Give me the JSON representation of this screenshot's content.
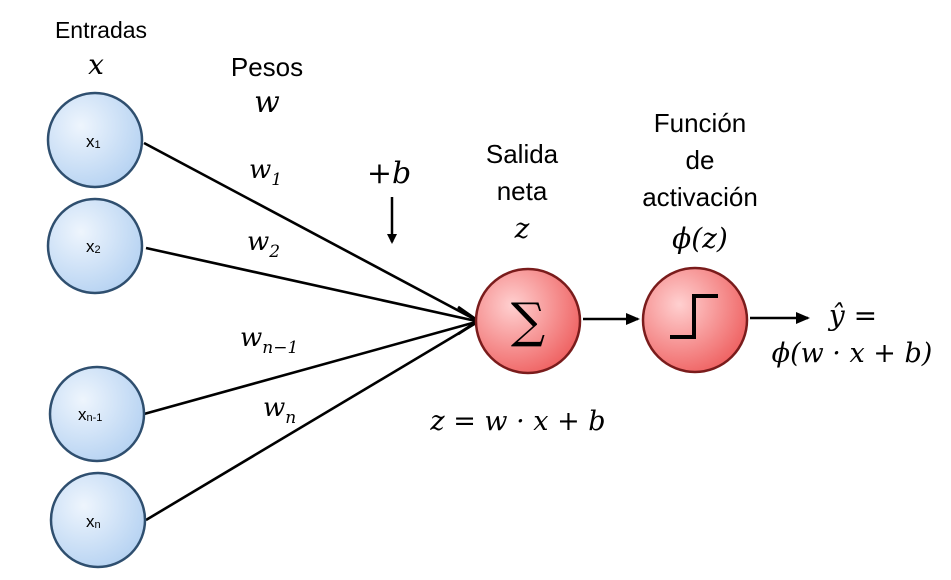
{
  "inputs": {
    "header_label": "Entradas",
    "header_symbol": "x",
    "nodes": [
      {
        "base": "x",
        "sub": "1"
      },
      {
        "base": "x",
        "sub": "2"
      },
      {
        "base": "x",
        "sub": "n-1"
      },
      {
        "base": "x",
        "sub": "n"
      }
    ]
  },
  "weights": {
    "header_label": "Pesos",
    "header_symbol": "w",
    "labels": [
      {
        "base": "w",
        "sub": "1"
      },
      {
        "base": "w",
        "sub": "2"
      },
      {
        "base": "w",
        "sub": "n−1"
      },
      {
        "base": "w",
        "sub": "n"
      }
    ]
  },
  "bias": {
    "label": "+b"
  },
  "net_output": {
    "label_line1": "Salida",
    "label_line2": "neta",
    "symbol": "z",
    "node_symbol": "∑",
    "equation": "z = w · x + b"
  },
  "activation": {
    "label_line1": "Función",
    "label_line2": "de",
    "label_line3": "activación",
    "symbol": "ϕ(z)"
  },
  "output": {
    "line1": "ŷ =",
    "line2": "ϕ(w · x + b)"
  },
  "colors": {
    "input_node_fill": "#cfe2f8",
    "input_node_stroke": "#2f4f6f",
    "neuron_fill": "#f47a7a",
    "neuron_stroke": "#7a1c1c",
    "line": "#000000"
  }
}
